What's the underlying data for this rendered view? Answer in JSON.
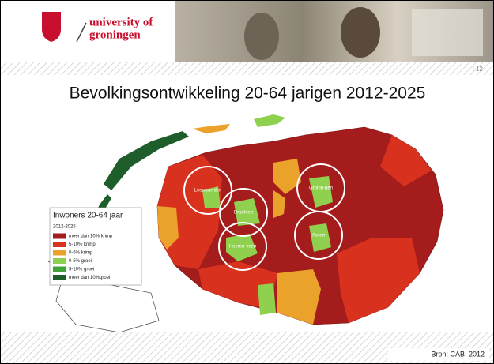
{
  "header": {
    "university_line1": "university of",
    "university_line2": "groningen",
    "page_number": "| 12"
  },
  "title": "Bevolkingsontwikkeling 20-64 jarigen 2012-2025",
  "map": {
    "legend": {
      "title": "Inwoners 20-64 jaar",
      "subtitle": "2012-2025",
      "items": [
        {
          "name": "meer dan 10% krimp",
          "color": "#a51c1c"
        },
        {
          "name": "5-10% krimp",
          "color": "#d8321e"
        },
        {
          "name": "0-5% krimp",
          "color": "#eaa22a"
        },
        {
          "name": "0-5% groei",
          "color": "#8fd14f"
        },
        {
          "name": "5-10% groei",
          "color": "#3fa535"
        },
        {
          "name": "meer dan 10%groei",
          "color": "#1d5e2a"
        }
      ]
    },
    "cities": [
      {
        "label": "Leeuwar-den"
      },
      {
        "label": "Drachten"
      },
      {
        "label": "Heeren-veen"
      },
      {
        "label": "Gronin-gen"
      },
      {
        "label": "Assen"
      }
    ]
  },
  "source": "Bron: CAB, 2012"
}
